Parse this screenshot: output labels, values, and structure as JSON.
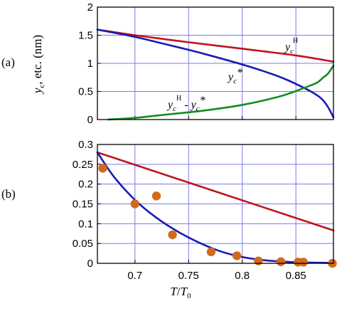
{
  "chart_data": [
    {
      "panel": "(a)",
      "type": "line",
      "xlim": [
        0.665,
        0.885
      ],
      "ylim": [
        0,
        2
      ],
      "yticks": [
        "0",
        "0.5",
        "1",
        "1.5",
        "2"
      ],
      "ylabel": {
        "main": "y",
        "sub": "c",
        "tail": ", etc. (nm)"
      },
      "grid": true,
      "colors": {
        "yH": "#c0141e",
        "ystar": "#1a1ab4",
        "diff": "#128c1e",
        "grid": "#7a7af0"
      },
      "annotations": {
        "yH": {
          "main": "y",
          "sub": "c",
          "sup": "H"
        },
        "ystar": {
          "main": "y",
          "sub": "c",
          "tail": "*"
        },
        "diff": {
          "m1": "y",
          "s1": "c",
          "p1": "H",
          "mid": " - ",
          "m2": "y",
          "s2": "c",
          "tail": "*"
        }
      },
      "series": [
        {
          "key": "yH",
          "x": [
            0.665,
            0.7,
            0.75,
            0.8,
            0.85,
            0.885
          ],
          "y": [
            1.6,
            1.5,
            1.375,
            1.26,
            1.14,
            1.03
          ]
        },
        {
          "key": "ystar",
          "x": [
            0.665,
            0.7,
            0.72,
            0.75,
            0.77,
            0.8,
            0.82,
            0.84,
            0.86,
            0.87,
            0.875,
            0.88,
            0.885
          ],
          "y": [
            1.6,
            1.47,
            1.38,
            1.24,
            1.14,
            0.98,
            0.86,
            0.72,
            0.54,
            0.43,
            0.35,
            0.22,
            0.04
          ]
        },
        {
          "key": "diff",
          "x": [
            0.675,
            0.7,
            0.72,
            0.74,
            0.76,
            0.78,
            0.8,
            0.82,
            0.84,
            0.86,
            0.87,
            0.875,
            0.88,
            0.885
          ],
          "y": [
            0.0,
            0.03,
            0.07,
            0.11,
            0.15,
            0.2,
            0.26,
            0.34,
            0.44,
            0.58,
            0.66,
            0.74,
            0.82,
            0.96
          ]
        }
      ]
    },
    {
      "panel": "(b)",
      "type": "line",
      "xlim": [
        0.665,
        0.885
      ],
      "ylim": [
        0,
        0.3
      ],
      "xticks": [
        "0.7",
        "0.75",
        "0.8",
        "0.85"
      ],
      "yticks": [
        "0",
        "0.05",
        "0.1",
        "0.15",
        "0.2",
        "0.25",
        "0.3"
      ],
      "xlabel": {
        "m1": "T",
        "mid": "/",
        "m2": "T",
        "sub": "0"
      },
      "grid": true,
      "colors": {
        "line_red": "#c0141e",
        "line_blue": "#1a1ab4",
        "points": "#d06a1e",
        "grid": "#7a7af0"
      },
      "series": [
        {
          "key": "red",
          "x": [
            0.665,
            0.885
          ],
          "y": [
            0.28,
            0.083
          ]
        },
        {
          "key": "blue",
          "x": [
            0.665,
            0.68,
            0.7,
            0.72,
            0.74,
            0.76,
            0.78,
            0.8,
            0.82,
            0.84,
            0.86,
            0.885
          ],
          "y": [
            0.28,
            0.22,
            0.16,
            0.115,
            0.08,
            0.052,
            0.03,
            0.016,
            0.008,
            0.004,
            0.002,
            0.001
          ]
        },
        {
          "key": "points",
          "x": [
            0.67,
            0.7,
            0.72,
            0.735,
            0.771,
            0.795,
            0.815,
            0.836,
            0.852,
            0.857,
            0.884
          ],
          "y": [
            0.24,
            0.15,
            0.17,
            0.072,
            0.029,
            0.019,
            0.006,
            0.004,
            0.003,
            0.003,
            0.0
          ]
        }
      ]
    }
  ]
}
